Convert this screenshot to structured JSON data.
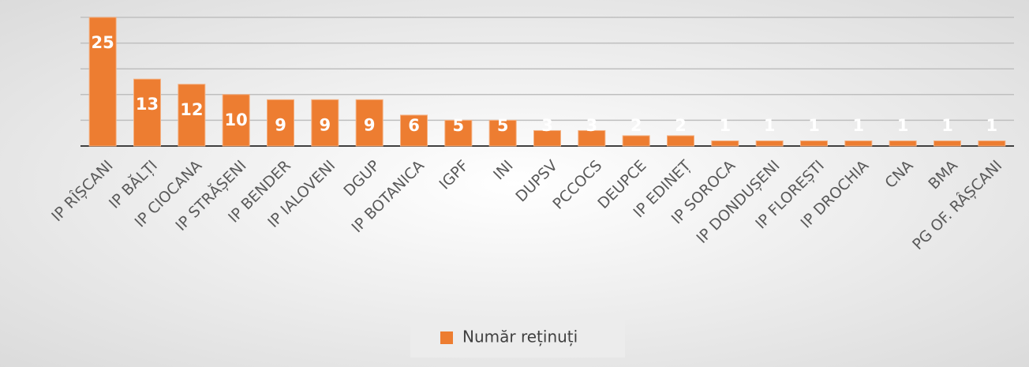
{
  "chart_data": {
    "type": "bar",
    "categories": [
      "IP RÎȘCANI",
      "IP BĂLȚI",
      "IP CIOCANA",
      "IP STRĂȘENI",
      "IP BENDER",
      "IP IALOVENI",
      "DGUP",
      "IP BOTANICA",
      "IGPF",
      "INI",
      "DUPSV",
      "PCCOCS",
      "DEUPCE",
      "IP EDINEȚ",
      "IP SOROCA",
      "IP DONDUȘENI",
      "IP FLOREȘTI",
      "IP DROCHIA",
      "CNA",
      "BMA",
      "PG OF. RÂȘCANI"
    ],
    "series": [
      {
        "name": "Număr reținuți",
        "color": "#ed7d31",
        "values": [
          25,
          13,
          12,
          10,
          9,
          9,
          9,
          6,
          5,
          5,
          3,
          3,
          2,
          2,
          1,
          1,
          1,
          1,
          1,
          1,
          1
        ]
      }
    ],
    "ylim": [
      0,
      25
    ],
    "yticks": [
      0,
      5,
      10,
      15,
      20,
      25
    ],
    "grid": true,
    "legend": "bottom"
  }
}
